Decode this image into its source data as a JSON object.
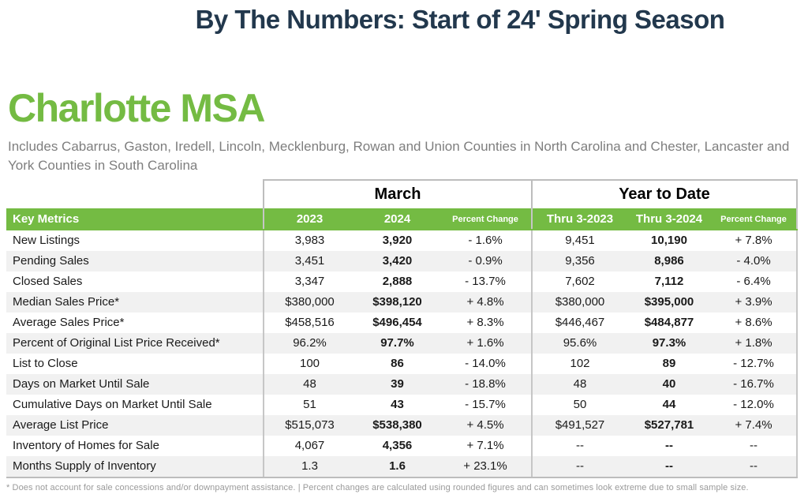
{
  "page_title": "By The Numbers: Start of 24' Spring Season",
  "region": {
    "name": "Charlotte MSA",
    "description": "Includes Cabarrus, Gaston, Iredell, Lincoln, Mecklenburg, Rowan and Union Counties in North Carolina and Chester, Lancaster and York Counties in South Carolina"
  },
  "table": {
    "group_headers": [
      "March",
      "Year to Date"
    ],
    "columns": [
      "Key Metrics",
      "2023",
      "2024",
      "Percent Change",
      "Thru 3-2023",
      "Thru 3-2024",
      "Percent Change"
    ],
    "rows": [
      {
        "metric": "New Listings",
        "m2023": "3,983",
        "m2024": "3,920",
        "m_chg": "- 1.6%",
        "y2023": "9,451",
        "y2024": "10,190",
        "y_chg": "+ 7.8%"
      },
      {
        "metric": "Pending Sales",
        "m2023": "3,451",
        "m2024": "3,420",
        "m_chg": "- 0.9%",
        "y2023": "9,356",
        "y2024": "8,986",
        "y_chg": "- 4.0%"
      },
      {
        "metric": "Closed Sales",
        "m2023": "3,347",
        "m2024": "2,888",
        "m_chg": "- 13.7%",
        "y2023": "7,602",
        "y2024": "7,112",
        "y_chg": "- 6.4%"
      },
      {
        "metric": "Median Sales Price*",
        "m2023": "$380,000",
        "m2024": "$398,120",
        "m_chg": "+ 4.8%",
        "y2023": "$380,000",
        "y2024": "$395,000",
        "y_chg": "+ 3.9%"
      },
      {
        "metric": "Average Sales Price*",
        "m2023": "$458,516",
        "m2024": "$496,454",
        "m_chg": "+ 8.3%",
        "y2023": "$446,467",
        "y2024": "$484,877",
        "y_chg": "+ 8.6%"
      },
      {
        "metric": "Percent of Original List Price Received*",
        "m2023": "96.2%",
        "m2024": "97.7%",
        "m_chg": "+ 1.6%",
        "y2023": "95.6%",
        "y2024": "97.3%",
        "y_chg": "+ 1.8%"
      },
      {
        "metric": "List to Close",
        "m2023": "100",
        "m2024": "86",
        "m_chg": "- 14.0%",
        "y2023": "102",
        "y2024": "89",
        "y_chg": "- 12.7%"
      },
      {
        "metric": "Days on Market Until Sale",
        "m2023": "48",
        "m2024": "39",
        "m_chg": "- 18.8%",
        "y2023": "48",
        "y2024": "40",
        "y_chg": "- 16.7%"
      },
      {
        "metric": "Cumulative Days on Market Until Sale",
        "m2023": "51",
        "m2024": "43",
        "m_chg": "- 15.7%",
        "y2023": "50",
        "y2024": "44",
        "y_chg": "- 12.0%"
      },
      {
        "metric": "Average List Price",
        "m2023": "$515,073",
        "m2024": "$538,380",
        "m_chg": "+ 4.5%",
        "y2023": "$491,527",
        "y2024": "$527,781",
        "y_chg": "+ 7.4%"
      },
      {
        "metric": "Inventory of Homes for Sale",
        "m2023": "4,067",
        "m2024": "4,356",
        "m_chg": "+ 7.1%",
        "y2023": "--",
        "y2024": "--",
        "y_chg": "--"
      },
      {
        "metric": "Months Supply of Inventory",
        "m2023": "1.3",
        "m2024": "1.6",
        "m_chg": "+ 23.1%",
        "y2023": "--",
        "y2024": "--",
        "y_chg": "--"
      }
    ],
    "footnote": "* Does not account for sale concessions and/or downpayment assistance.  |  Percent changes are calculated using rounded figures and can sometimes look extreme due to small sample size."
  },
  "colors": {
    "accent_green": "#74bb43",
    "title_navy": "#22384d",
    "alt_row_gray": "#f1f1f1",
    "border_gray": "#bdbdbd",
    "subtitle_gray": "#7e7e7e"
  }
}
